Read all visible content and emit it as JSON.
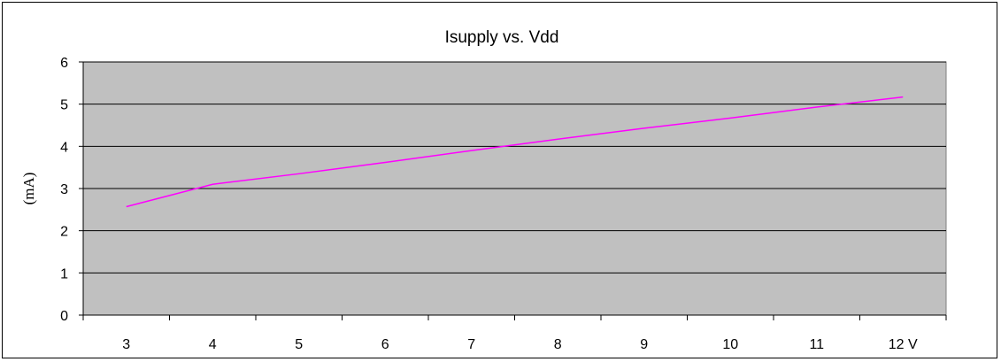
{
  "chart_data": {
    "type": "line",
    "title": "Isupply vs. Vdd",
    "ylabel": "(mA)",
    "xlabel": "",
    "categories": [
      "3",
      "4",
      "5",
      "6",
      "7",
      "8",
      "9",
      "10",
      "11",
      "12 V"
    ],
    "series": [
      {
        "values": [
          2.57,
          3.1,
          3.35,
          3.62,
          3.9,
          4.17,
          4.43,
          4.67,
          4.93,
          5.17
        ]
      }
    ],
    "ylim": [
      0,
      6
    ],
    "yticks": [
      0,
      1,
      2,
      3,
      4,
      5,
      6
    ],
    "grid": true,
    "plot_background": "#c0c0c0",
    "line_color": "#ff00ff"
  }
}
